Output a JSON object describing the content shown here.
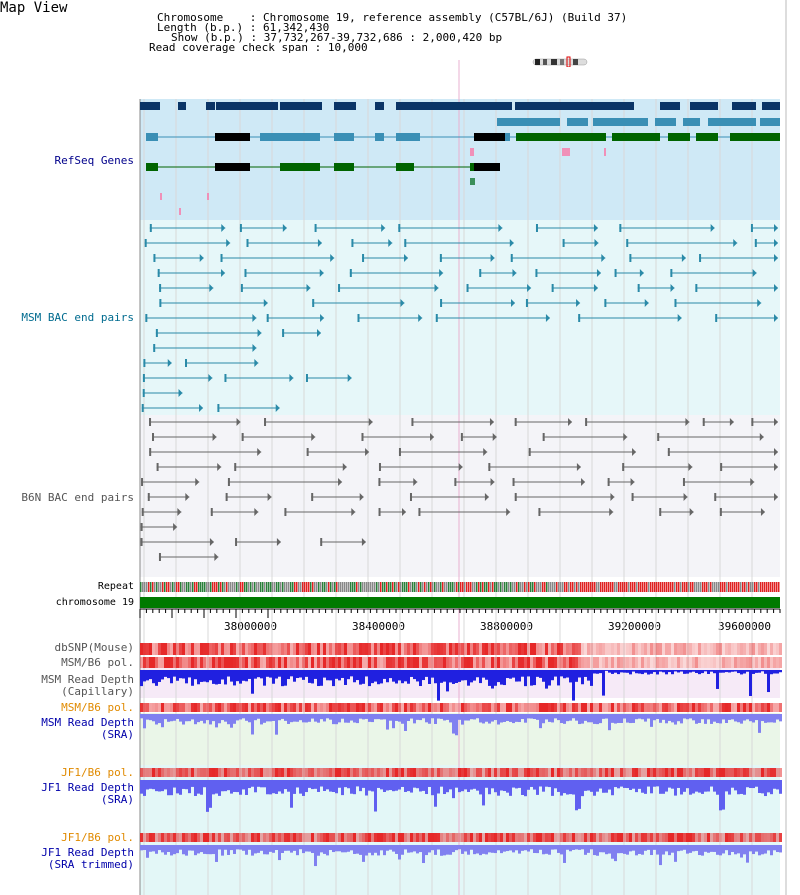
{
  "title": "Map View",
  "info": {
    "chromosome_label": "Chromosome",
    "chromosome_value": "Chromosome 19, reference assembly (C57BL/6J) (Build 37)",
    "length_label": "Length (b.p.)",
    "length_value": "61,342,430",
    "show_label": "Show (b.p.)",
    "show_value": "37,732,267-39,732,686 : 2,000,420 bp",
    "coverage_label": "Read coverage check span",
    "coverage_value": "10,000"
  },
  "tracks": {
    "refseq": "RefSeq Genes",
    "msm_bac": "MSM BAC end pairs",
    "b6n_bac": "B6N BAC end pairs",
    "repeat": "Repeat",
    "chromosome": "chromosome 19",
    "dbsnp": "dbSNP(Mouse)",
    "msm_b6_pol": "MSM/B6 pol.",
    "msm_read_cap_1": "MSM Read Depth",
    "msm_read_cap_2": "(Capillary)",
    "msm_b6_pol_2": "MSM/B6 pol.",
    "msm_read_sra_1": "MSM Read Depth",
    "msm_read_sra_2": "(SRA)",
    "jf1_b6_pol": "JF1/B6 pol.",
    "jf1_read_sra_1": "JF1 Read Depth",
    "jf1_read_sra_2": "(SRA)",
    "jf1_b6_pol_2": "JF1/B6 pol.",
    "jf1_read_trim_1": "JF1 Read Depth",
    "jf1_read_trim_2": "(SRA trimmed)"
  },
  "axis_ticks": [
    "38000000",
    "38400000",
    "38800000",
    "39200000",
    "39600000"
  ],
  "colors": {
    "navy": "#0a3466",
    "teal_gene": "#3a8fb5",
    "green_gene": "#006400",
    "refseq_label": "#00008b",
    "msm_label": "#006b8f",
    "b6n_label": "#555555",
    "orange_label": "#e08a00",
    "blue_label": "#0000aa"
  }
}
